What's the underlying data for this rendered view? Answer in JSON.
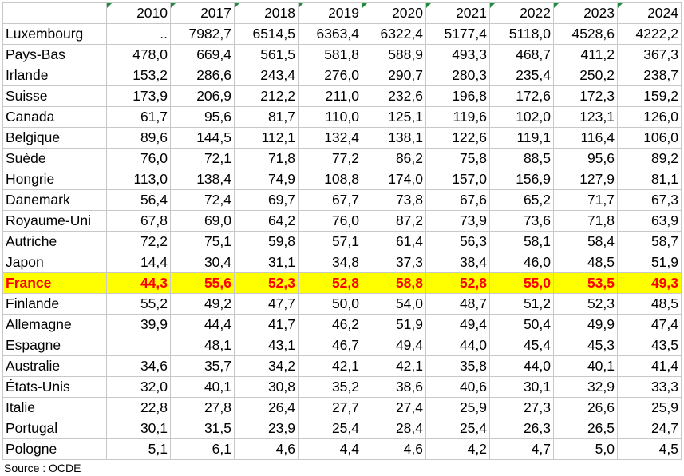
{
  "table": {
    "header": [
      null,
      "2010",
      "2017",
      "2018",
      "2019",
      "2020",
      "2021",
      "2022",
      "2023",
      "2024"
    ],
    "rows": [
      [
        "Luxembourg",
        "..",
        "7982,7",
        "6514,5",
        "6363,4",
        "6322,4",
        "5177,4",
        "5118,0",
        "4528,6",
        "4222,2"
      ],
      [
        "Pays-Bas",
        "478,0",
        "669,4",
        "561,5",
        "581,8",
        "588,9",
        "493,3",
        "468,7",
        "411,2",
        "367,3"
      ],
      [
        "Irlande",
        "153,2",
        "286,6",
        "243,4",
        "276,0",
        "290,7",
        "280,3",
        "235,4",
        "250,2",
        "238,7"
      ],
      [
        "Suisse",
        "173,9",
        "206,9",
        "212,2",
        "211,0",
        "232,6",
        "196,8",
        "172,6",
        "172,3",
        "159,2"
      ],
      [
        "Canada",
        "61,7",
        "95,6",
        "81,7",
        "110,0",
        "125,1",
        "119,6",
        "102,0",
        "123,1",
        "126,0"
      ],
      [
        "Belgique",
        "89,6",
        "144,5",
        "112,1",
        "132,4",
        "138,1",
        "122,6",
        "119,1",
        "116,4",
        "106,0"
      ],
      [
        "Suède",
        "76,0",
        "72,1",
        "71,8",
        "77,2",
        "86,2",
        "75,8",
        "88,5",
        "95,6",
        "89,2"
      ],
      [
        "Hongrie",
        "113,0",
        "138,4",
        "74,9",
        "108,8",
        "174,0",
        "157,0",
        "156,9",
        "127,9",
        "81,1"
      ],
      [
        "Danemark",
        "56,4",
        "72,4",
        "69,7",
        "67,7",
        "73,8",
        "67,6",
        "65,2",
        "71,7",
        "67,3"
      ],
      [
        "Royaume-Uni",
        "67,8",
        "69,0",
        "64,2",
        "76,0",
        "87,2",
        "73,9",
        "73,6",
        "71,8",
        "63,9"
      ],
      [
        "Autriche",
        "72,2",
        "75,1",
        "59,8",
        "57,1",
        "61,4",
        "56,3",
        "58,1",
        "58,4",
        "58,7"
      ],
      [
        "Japon",
        "14,4",
        "30,4",
        "31,1",
        "34,8",
        "37,3",
        "38,4",
        "46,0",
        "48,5",
        "51,9"
      ],
      [
        "France",
        "44,3",
        "55,6",
        "52,3",
        "52,8",
        "58,8",
        "52,8",
        "55,0",
        "53,5",
        "49,3"
      ],
      [
        "Finlande",
        "55,2",
        "49,2",
        "47,7",
        "50,0",
        "54,0",
        "48,7",
        "51,2",
        "52,3",
        "48,5"
      ],
      [
        "Allemagne",
        "39,9",
        "44,4",
        "41,7",
        "46,2",
        "51,9",
        "49,4",
        "50,4",
        "49,9",
        "47,4"
      ],
      [
        "Espagne",
        null,
        "48,1",
        "43,1",
        "46,7",
        "49,4",
        "44,0",
        "45,4",
        "45,3",
        "43,5"
      ],
      [
        "Australie",
        "34,6",
        "35,7",
        "34,2",
        "42,1",
        "42,1",
        "35,8",
        "44,0",
        "40,1",
        "41,4"
      ],
      [
        "États-Unis",
        "32,0",
        "40,1",
        "30,8",
        "35,2",
        "38,6",
        "40,6",
        "30,1",
        "32,9",
        "33,3"
      ],
      [
        "Italie",
        "22,8",
        "27,8",
        "26,4",
        "27,7",
        "27,4",
        "25,9",
        "27,3",
        "26,6",
        "25,9"
      ],
      [
        "Portugal",
        "30,1",
        "31,5",
        "23,9",
        "25,4",
        "28,4",
        "25,4",
        "26,3",
        "26,5",
        "24,7"
      ],
      [
        "Pologne",
        "5,1",
        "6,1",
        "4,6",
        "4,4",
        "4,6",
        "4,2",
        "4,7",
        "5,0",
        "4,5"
      ]
    ],
    "source": "Source : OCDE"
  }
}
